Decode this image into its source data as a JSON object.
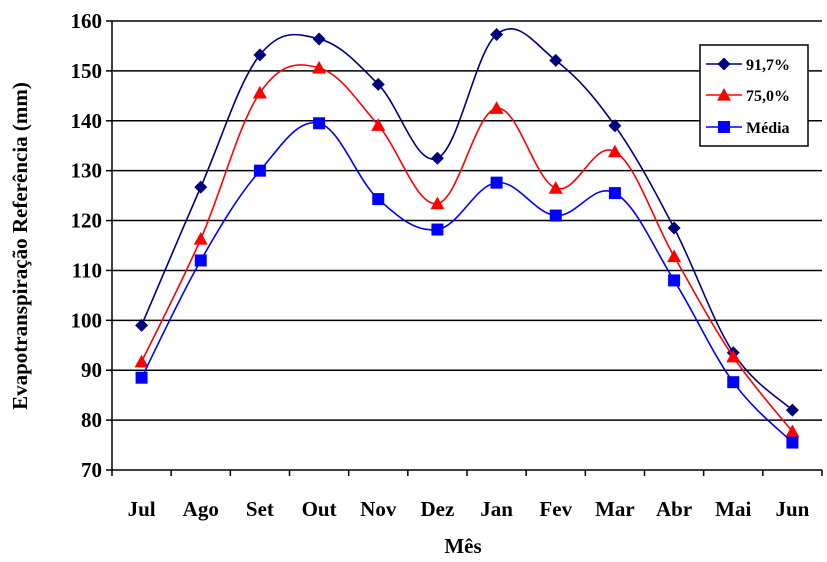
{
  "chart_data": {
    "type": "line",
    "title": "",
    "xlabel": "Mês",
    "ylabel": "Evapotranspiração Referência (mm)",
    "categories": [
      "Jul",
      "Ago",
      "Set",
      "Out",
      "Nov",
      "Dez",
      "Jan",
      "Fev",
      "Mar",
      "Abr",
      "Mai",
      "Jun"
    ],
    "ylim": [
      70,
      160
    ],
    "yticks": [
      "70",
      "80",
      "90",
      "100",
      "110",
      "120",
      "130",
      "140",
      "150",
      "160"
    ],
    "grid": true,
    "legend_position": "top-right",
    "series": [
      {
        "name": "91,7%",
        "color": "#00007f",
        "marker": "diamond",
        "values": [
          99,
          126.7,
          153.2,
          156.4,
          147.3,
          132.5,
          157.3,
          152.1,
          139,
          118.5,
          93.5,
          82
        ]
      },
      {
        "name": "75,0%",
        "color": "#ff0000",
        "marker": "triangle",
        "values": [
          91.7,
          116.3,
          145.6,
          150.6,
          139.1,
          123.4,
          142.5,
          126.5,
          133.8,
          112.8,
          92.7,
          77.7
        ]
      },
      {
        "name": "Média",
        "color": "#0000ff",
        "marker": "square",
        "values": [
          88.5,
          112,
          130,
          139.5,
          124.3,
          118.2,
          127.6,
          121,
          125.5,
          108,
          87.6,
          75.5
        ]
      }
    ]
  }
}
